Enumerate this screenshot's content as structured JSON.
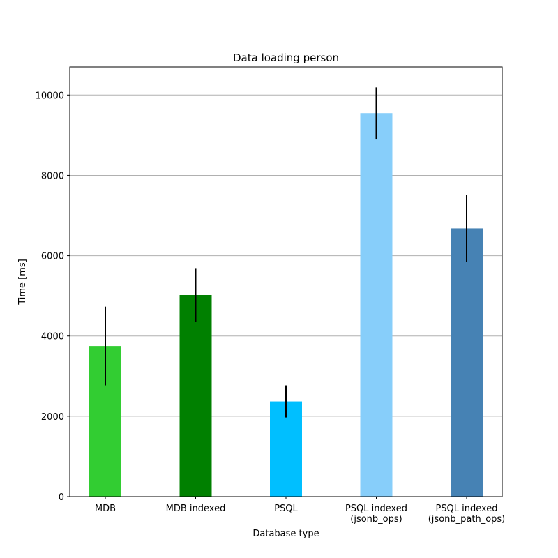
{
  "chart_data": {
    "type": "bar",
    "title": "Data loading person",
    "xlabel": "Database type",
    "ylabel": "Time [ms]",
    "ylim": [
      0,
      10700
    ],
    "yticks": [
      0,
      2000,
      4000,
      6000,
      8000,
      10000
    ],
    "ytick_labels": [
      "0",
      "2000",
      "4000",
      "6000",
      "8000",
      "10000"
    ],
    "grid": "y-major",
    "categories": [
      {
        "lines": [
          "MDB"
        ]
      },
      {
        "lines": [
          "MDB indexed"
        ]
      },
      {
        "lines": [
          "PSQL"
        ]
      },
      {
        "lines": [
          "PSQL indexed",
          "(jsonb_ops)"
        ]
      },
      {
        "lines": [
          "PSQL indexed",
          "(jsonb_path_ops)"
        ]
      }
    ],
    "values": [
      3750,
      5020,
      2370,
      9550,
      6680
    ],
    "errors": [
      980,
      670,
      400,
      640,
      840
    ],
    "colors": [
      "#32cd32",
      "#008000",
      "#00bfff",
      "#87cefa",
      "#4682b4"
    ],
    "error_color": "#000000"
  }
}
